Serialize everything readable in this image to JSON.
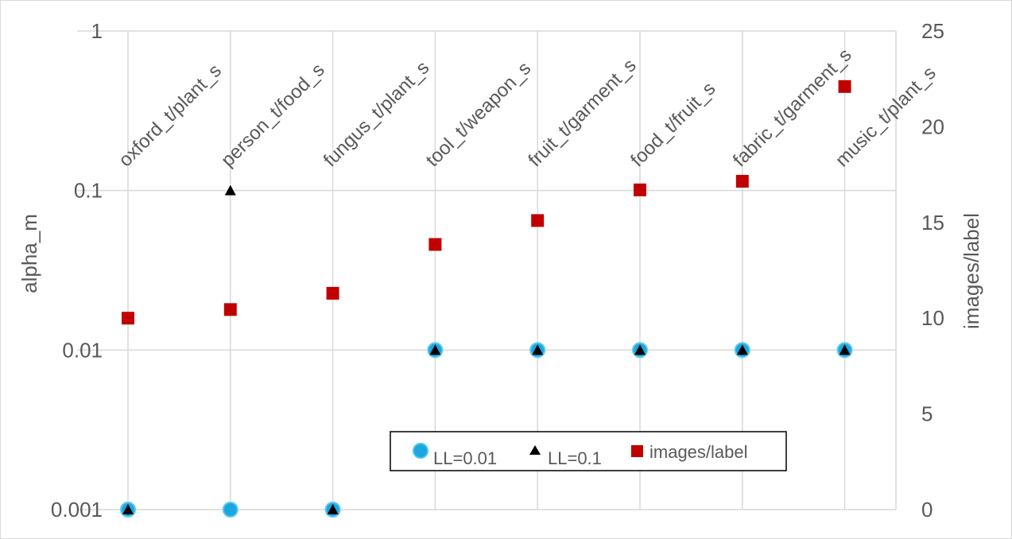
{
  "chart_data": {
    "type": "scatter",
    "categories": [
      "oxford_t/plant_s",
      "person_t/food_s",
      "fungus_t/plant_s",
      "tool_t/weapon_s",
      "fruit_t/garment_s",
      "food_t/fruit_s",
      "fabric_t/garment_s",
      "music_t/plant_s"
    ],
    "y_axis_left": {
      "label": "alpha_m",
      "scale": "log",
      "range": [
        0.001,
        1
      ],
      "ticks": [
        0.001,
        0.01,
        0.1,
        1
      ],
      "tick_labels": [
        "0.001",
        "0.01",
        "0.1",
        "1"
      ]
    },
    "y_axis_right": {
      "label": "images/label",
      "scale": "linear",
      "range": [
        0,
        25
      ],
      "ticks": [
        0,
        5,
        10,
        15,
        20,
        25
      ],
      "tick_labels": [
        "0",
        "5",
        "10",
        "15",
        "20",
        "25"
      ]
    },
    "grid": true,
    "legend_placement": "bottom-center",
    "series": [
      {
        "name": "LL=0.01",
        "axis": "left",
        "marker": "circle",
        "color": "#1aa7e0",
        "values": [
          0.001,
          0.001,
          0.001,
          0.01,
          0.01,
          0.01,
          0.01,
          0.01
        ]
      },
      {
        "name": "LL=0.1",
        "axis": "left",
        "marker": "triangle",
        "color": "#000000",
        "values": [
          0.001,
          0.1,
          0.001,
          0.01,
          0.01,
          0.01,
          0.01,
          0.01
        ]
      },
      {
        "name": "images/label",
        "axis": "right",
        "marker": "square",
        "color": "#c00000",
        "values": [
          10.0,
          10.45,
          11.3,
          13.85,
          15.1,
          16.7,
          17.15,
          22.1
        ]
      }
    ]
  }
}
